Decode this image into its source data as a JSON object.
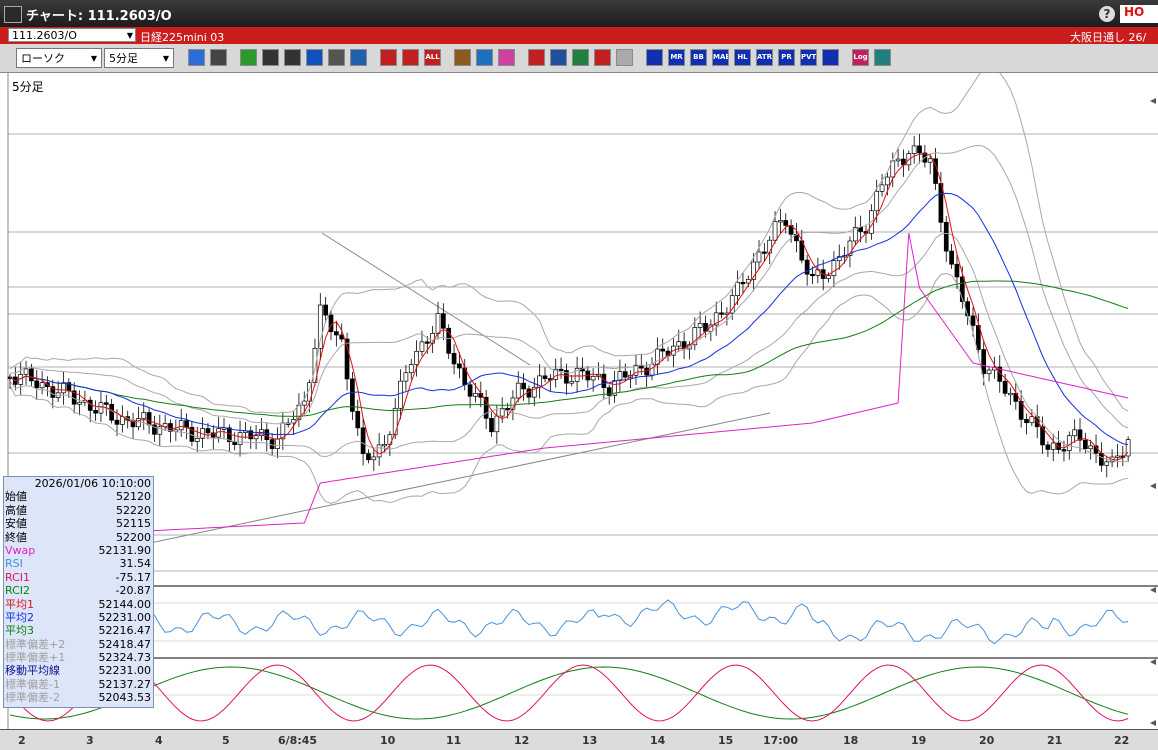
{
  "window": {
    "title": "チャート: 111.2603/O",
    "help": "?",
    "hot_label": "HO"
  },
  "infobar": {
    "symbol": "111.2603/O",
    "instrument": "日経225mini 03",
    "market": "大阪日通し 26/"
  },
  "toolbar": {
    "chart_type": "ローソク",
    "timeframe": "5分足",
    "icons": [
      "search-icon",
      "crosshair-icon",
      "draw-line-icon",
      "zoom-icon",
      "cursor-icon",
      "undo-icon",
      "list-icon",
      "trash-icon",
      "bar-left-icon",
      "bar-right-icon",
      "all-icon",
      "settings-icon",
      "pen-icon",
      "color-icon",
      "import-icon",
      "clock-icon",
      "bars-icon",
      "delete-icon",
      "blank-icon",
      "indicator-icon",
      "ma-icon",
      "bb-icon",
      "mae-icon",
      "hl-icon",
      "atr-icon",
      "pr-icon",
      "pvt-icon",
      "frame-icon",
      "log-icon",
      "window-icon"
    ],
    "labels": {
      "mr": "MR",
      "bb": "BB",
      "mae": "MAE",
      "hl": "HL",
      "atr": "ATR",
      "pr": "PR",
      "pvt": "PVT",
      "log": "Log",
      "all": "ALL"
    }
  },
  "chart": {
    "timeframe_label": "5分足",
    "x_labels": [
      "2",
      "3",
      "4",
      "5",
      "6/8:45",
      "10",
      "11",
      "12",
      "13",
      "14",
      "15",
      "17:00",
      "18",
      "19",
      "20",
      "21",
      "22"
    ]
  },
  "data_panel": {
    "datetime": "2026/01/06 10:10:00",
    "rows": [
      {
        "label": "始値",
        "value": "52120",
        "color": "#000000"
      },
      {
        "label": "高値",
        "value": "52220",
        "color": "#000000"
      },
      {
        "label": "安値",
        "value": "52115",
        "color": "#000000"
      },
      {
        "label": "終値",
        "value": "52200",
        "color": "#000000"
      },
      {
        "label": "Vwap",
        "value": "52131.90",
        "color": "#e020c8"
      },
      {
        "label": "RSI",
        "value": "31.54",
        "color": "#4a90d9"
      },
      {
        "label": "RCI1",
        "value": "-75.17",
        "color": "#e01060"
      },
      {
        "label": "RCI2",
        "value": "-20.87",
        "color": "#108010"
      },
      {
        "label": "平均1",
        "value": "52144.00",
        "color": "#e01010"
      },
      {
        "label": "平均2",
        "value": "52231.00",
        "color": "#1030e0"
      },
      {
        "label": "平均3",
        "value": "52216.47",
        "color": "#108010"
      },
      {
        "label": "標準偏差+2",
        "value": "52418.47",
        "color": "#a0a0a0"
      },
      {
        "label": "標準偏差+1",
        "value": "52324.73",
        "color": "#a0a0a0"
      },
      {
        "label": "移動平均線",
        "value": "52231.00",
        "color": "#101090"
      },
      {
        "label": "標準偏差-1",
        "value": "52137.27",
        "color": "#a0a0a0"
      },
      {
        "label": "標準偏差-2",
        "value": "52043.53",
        "color": "#a0a0a0"
      }
    ]
  },
  "colors": {
    "up": "#ffffff",
    "down": "#000000",
    "ma1": "#e01010",
    "ma2": "#1030e0",
    "ma3": "#108010",
    "vwap": "#e020c8",
    "rsi": "#4a90d9",
    "bands": "#a8a8a8",
    "rci1": "#e01060",
    "rci2": "#108010"
  }
}
